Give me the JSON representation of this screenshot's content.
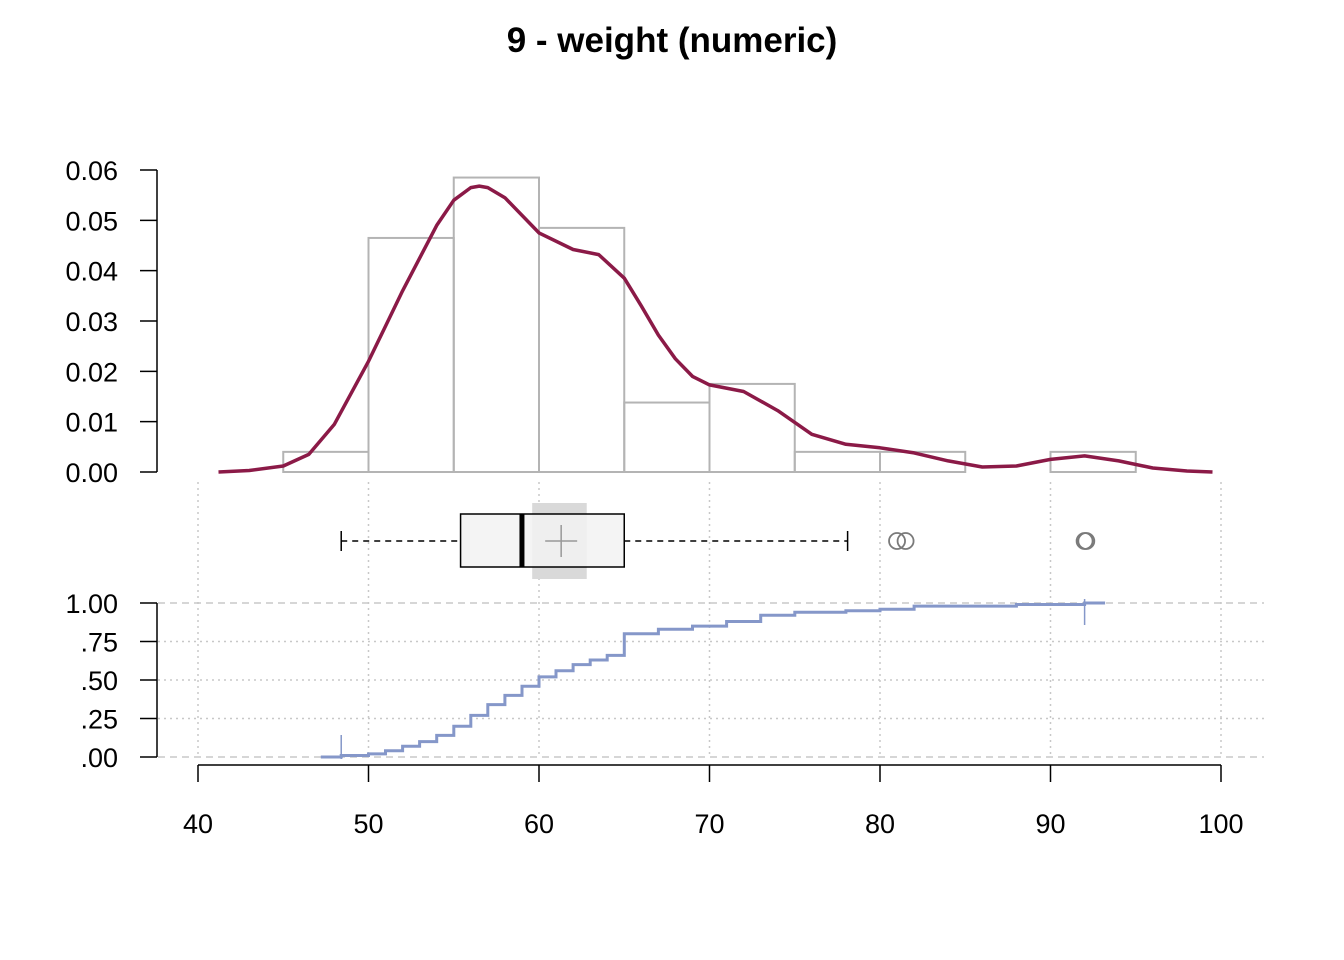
{
  "chart_data": {
    "type": "histogram",
    "title": "9 - weight (numeric)",
    "xlabel": "",
    "ylabel": "",
    "x_range": [
      40,
      100
    ],
    "x_ticks": [
      "40",
      "50",
      "60",
      "70",
      "80",
      "90",
      "100"
    ],
    "density_axis": {
      "ylim": [
        0,
        0.06
      ],
      "ticks": [
        "0.00",
        "0.01",
        "0.02",
        "0.03",
        "0.04",
        "0.05",
        "0.06"
      ]
    },
    "histogram": {
      "bin_edges": [
        45,
        50,
        55,
        60,
        65,
        70,
        75,
        80,
        85,
        90,
        95
      ],
      "density": [
        0.004,
        0.0465,
        0.0585,
        0.0485,
        0.0138,
        0.0175,
        0.004,
        0.004,
        0,
        0.004
      ]
    },
    "density_curve": {
      "x": [
        41.2,
        43,
        45,
        46.5,
        48,
        50,
        52,
        54,
        55,
        56,
        56.5,
        57,
        58,
        60,
        62,
        63.5,
        65,
        66,
        67,
        68,
        69,
        70,
        72,
        74,
        76,
        78,
        80,
        82,
        84,
        86,
        88,
        90,
        92,
        94,
        96,
        98,
        99.5
      ],
      "y": [
        0,
        0.0003,
        0.0012,
        0.0035,
        0.0095,
        0.022,
        0.036,
        0.049,
        0.054,
        0.0565,
        0.0568,
        0.0565,
        0.0545,
        0.0475,
        0.0442,
        0.0432,
        0.0385,
        0.033,
        0.0272,
        0.0225,
        0.019,
        0.0173,
        0.016,
        0.0122,
        0.0075,
        0.0055,
        0.0048,
        0.0038,
        0.0022,
        0.001,
        0.0012,
        0.0025,
        0.0032,
        0.0022,
        0.0008,
        0.0002,
        0
      ]
    },
    "boxplot": {
      "whisker_low": 48.4,
      "q1": 55.4,
      "median": 59,
      "q3": 65,
      "whisker_high": 78.1,
      "mean": 61.3,
      "mean_ci": [
        59.6,
        62.8
      ],
      "outliers": [
        81,
        81.5,
        92,
        92.1
      ]
    },
    "ecdf_axis": {
      "ylim": [
        0,
        1
      ],
      "ticks": [
        ".00",
        ".25",
        ".50",
        ".75",
        "1.00"
      ]
    },
    "ecdf": {
      "x": [
        48.4,
        50,
        51,
        52,
        53,
        54,
        55,
        56,
        57,
        58,
        59,
        60,
        61,
        62,
        63,
        64,
        65,
        67,
        69,
        71,
        73,
        75,
        78,
        80,
        82,
        88,
        92
      ],
      "y": [
        0.01,
        0.02,
        0.04,
        0.07,
        0.1,
        0.14,
        0.2,
        0.27,
        0.34,
        0.4,
        0.46,
        0.52,
        0.56,
        0.6,
        0.63,
        0.66,
        0.8,
        0.83,
        0.85,
        0.88,
        0.92,
        0.94,
        0.95,
        0.96,
        0.98,
        0.99,
        1
      ]
    },
    "colors": {
      "density_curve": "#8b1a47",
      "histogram_outline": "#b4b4b4",
      "ecdf": "#8597c9",
      "box_fill": "#f2f2f2",
      "mean_ci": "#d9d9d9",
      "mean_marker": "#999999",
      "outlier": "#7a7a7a",
      "grid": "#c8c8c8"
    },
    "grid": true,
    "legend": "none"
  }
}
